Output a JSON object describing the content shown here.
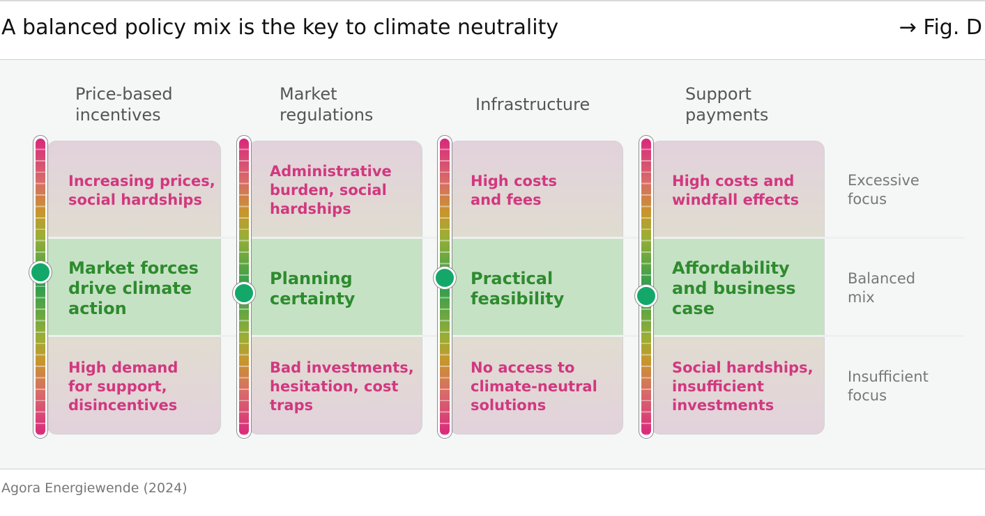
{
  "header": {
    "title": "A balanced policy mix is the key to climate neutrality",
    "fig_ref": "→ Fig. D"
  },
  "columns": [
    {
      "header_lines": [
        "Price-based",
        "incentives"
      ],
      "excessive": [
        "Increasing prices,",
        "social hardships"
      ],
      "balanced": [
        "Market forces",
        "drive climate",
        "action"
      ],
      "insufficient": [
        "High demand",
        "for support,",
        "disincentives"
      ],
      "marker_level": 0.45
    },
    {
      "header_lines": [
        "Market",
        "regulations"
      ],
      "excessive": [
        "Administrative",
        "burden, social",
        "hardships"
      ],
      "balanced": [
        "Planning",
        "certainty"
      ],
      "insufficient": [
        "Bad investments,",
        "hesitation, cost",
        "traps"
      ],
      "marker_level": 0.52
    },
    {
      "header_lines": [
        "Infrastructure"
      ],
      "excessive": [
        "High costs",
        "and fees"
      ],
      "balanced": [
        "Practical",
        "feasibility"
      ],
      "insufficient": [
        "No access to",
        "climate-neutral",
        "solutions"
      ],
      "marker_level": 0.47
    },
    {
      "header_lines": [
        "Support",
        "payments"
      ],
      "excessive": [
        "High costs and",
        "windfall effects"
      ],
      "balanced": [
        "Affordability",
        "and business",
        "case"
      ],
      "insufficient": [
        "Social hardships,",
        "insufficient",
        "investments"
      ],
      "marker_level": 0.53
    }
  ],
  "row_labels": {
    "excessive": [
      "Excessive",
      "focus"
    ],
    "balanced": [
      "Balanced",
      "mix"
    ],
    "insufficient": [
      "Insufficient",
      "focus"
    ]
  },
  "source": "Agora Energiewende (2024)",
  "colors": {
    "excessive_text": "#d1387f",
    "balanced_text": "#2e8b2e",
    "marker": "#13a86a"
  }
}
